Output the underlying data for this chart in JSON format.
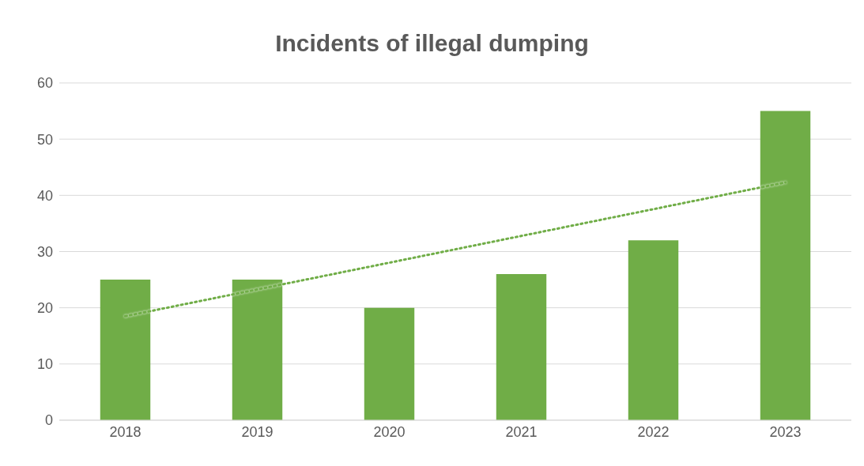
{
  "chart_data": {
    "type": "bar",
    "title": "Incidents of illegal dumping",
    "categories": [
      "2018",
      "2019",
      "2020",
      "2021",
      "2022",
      "2023"
    ],
    "series": [
      {
        "color": "#70ad47",
        "values": [
          25,
          25,
          20,
          26,
          32,
          55
        ]
      },
      {
        "type": "line",
        "color": "#70ad47",
        "line_style": "dotted",
        "marker": "none",
        "values": [
          18.5,
          null,
          null,
          null,
          null,
          42.3
        ]
      }
    ],
    "ylim": [
      0,
      60
    ],
    "yticks": [
      0,
      10,
      20,
      30,
      40,
      50,
      60
    ],
    "grid": "y",
    "legend": false
  }
}
